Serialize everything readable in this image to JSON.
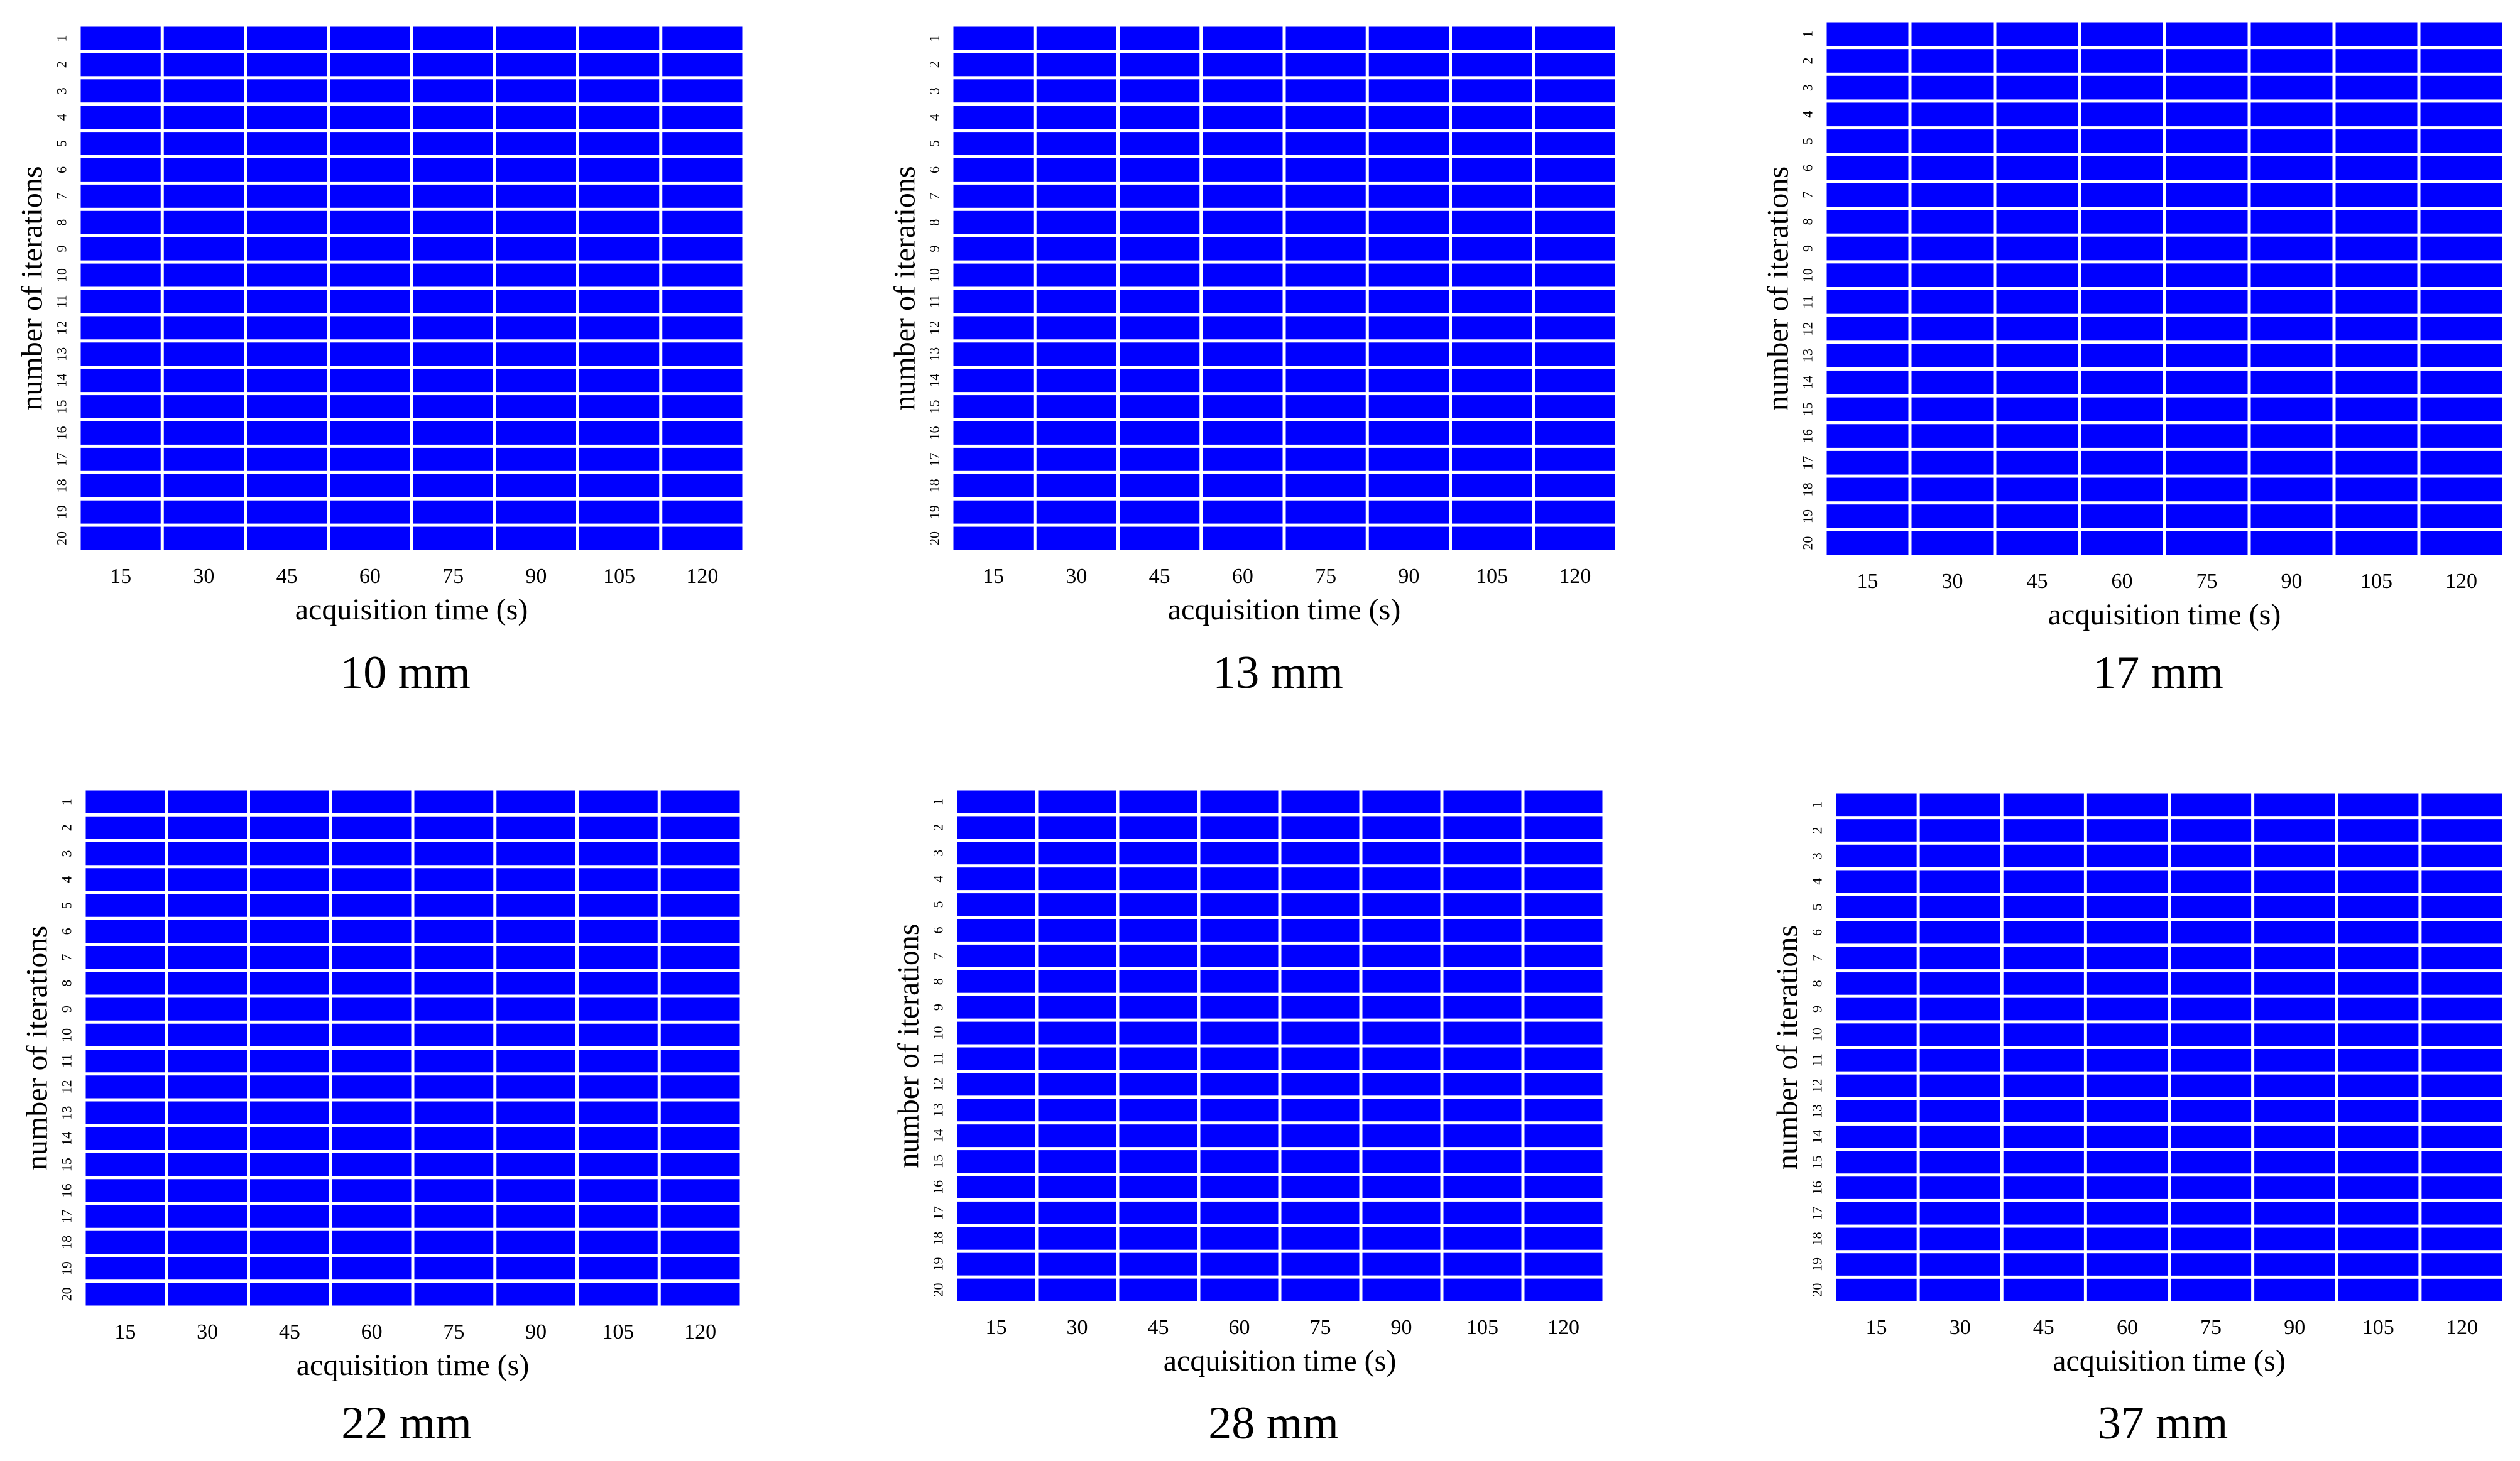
{
  "chart_data": [
    {
      "type": "heatmap",
      "panel_label": "10 mm",
      "xlabel": "acquisition time (s)",
      "ylabel": "number of iterations",
      "x_categories": [
        "15",
        "30",
        "45",
        "60",
        "75",
        "90",
        "105",
        "120"
      ],
      "y_categories": [
        "1",
        "2",
        "3",
        "4",
        "5",
        "6",
        "7",
        "8",
        "9",
        "10",
        "11",
        "12",
        "13",
        "14",
        "15",
        "16",
        "17",
        "18",
        "19",
        "20"
      ],
      "cell_color": "#0000ff",
      "gridline_color": "#ffffff",
      "legend": "none"
    },
    {
      "type": "heatmap",
      "panel_label": "13 mm",
      "xlabel": "acquisition time (s)",
      "ylabel": "number of iterations",
      "x_categories": [
        "15",
        "30",
        "45",
        "60",
        "75",
        "90",
        "105",
        "120"
      ],
      "y_categories": [
        "1",
        "2",
        "3",
        "4",
        "5",
        "6",
        "7",
        "8",
        "9",
        "10",
        "11",
        "12",
        "13",
        "14",
        "15",
        "16",
        "17",
        "18",
        "19",
        "20"
      ],
      "cell_color": "#0000ff",
      "gridline_color": "#ffffff",
      "legend": "none"
    },
    {
      "type": "heatmap",
      "panel_label": "17 mm",
      "xlabel": "acquisition time (s)",
      "ylabel": "number of iterations",
      "x_categories": [
        "15",
        "30",
        "45",
        "60",
        "75",
        "90",
        "105",
        "120"
      ],
      "y_categories": [
        "1",
        "2",
        "3",
        "4",
        "5",
        "6",
        "7",
        "8",
        "9",
        "10",
        "11",
        "12",
        "13",
        "14",
        "15",
        "16",
        "17",
        "18",
        "19",
        "20"
      ],
      "cell_color": "#0000ff",
      "gridline_color": "#ffffff",
      "legend": "none"
    },
    {
      "type": "heatmap",
      "panel_label": "22 mm",
      "xlabel": "acquisition time (s)",
      "ylabel": "number of iterations",
      "x_categories": [
        "15",
        "30",
        "45",
        "60",
        "75",
        "90",
        "105",
        "120"
      ],
      "y_categories": [
        "1",
        "2",
        "3",
        "4",
        "5",
        "6",
        "7",
        "8",
        "9",
        "10",
        "11",
        "12",
        "13",
        "14",
        "15",
        "16",
        "17",
        "18",
        "19",
        "20"
      ],
      "cell_color": "#0000ff",
      "gridline_color": "#ffffff",
      "legend": "none"
    },
    {
      "type": "heatmap",
      "panel_label": "28 mm",
      "xlabel": "acquisition time (s)",
      "ylabel": "number of iterations",
      "x_categories": [
        "15",
        "30",
        "45",
        "60",
        "75",
        "90",
        "105",
        "120"
      ],
      "y_categories": [
        "1",
        "2",
        "3",
        "4",
        "5",
        "6",
        "7",
        "8",
        "9",
        "10",
        "11",
        "12",
        "13",
        "14",
        "15",
        "16",
        "17",
        "18",
        "19",
        "20"
      ],
      "cell_color": "#0000ff",
      "gridline_color": "#ffffff",
      "legend": "none"
    },
    {
      "type": "heatmap",
      "panel_label": "37 mm",
      "xlabel": "acquisition time (s)",
      "ylabel": "number of iterations",
      "x_categories": [
        "15",
        "30",
        "45",
        "60",
        "75",
        "90",
        "105",
        "120"
      ],
      "y_categories": [
        "1",
        "2",
        "3",
        "4",
        "5",
        "6",
        "7",
        "8",
        "9",
        "10",
        "11",
        "12",
        "13",
        "14",
        "15",
        "16",
        "17",
        "18",
        "19",
        "20"
      ],
      "cell_color": "#0000ff",
      "gridline_color": "#ffffff",
      "legend": "none"
    }
  ]
}
